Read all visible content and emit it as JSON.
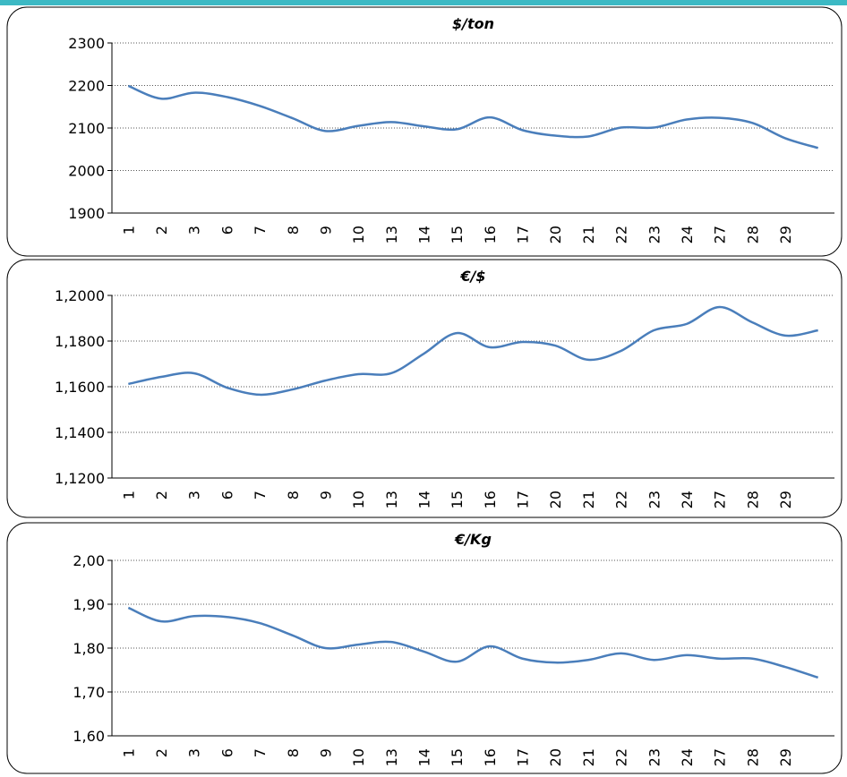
{
  "chart_data": [
    {
      "type": "line",
      "title": "$/ton",
      "categories": [
        "1",
        "2",
        "3",
        "6",
        "7",
        "8",
        "9",
        "10",
        "13",
        "14",
        "15",
        "16",
        "17",
        "20",
        "21",
        "22",
        "23",
        "24",
        "27",
        "28",
        "29",
        null
      ],
      "series": [
        {
          "color": "#4a7ebb",
          "values": [
            2199,
            2169,
            2183,
            2173,
            2152,
            2123,
            2093,
            2105,
            2114,
            2104,
            2097,
            2125,
            2095,
            2082,
            2080,
            2101,
            2101,
            2120,
            2124,
            2112,
            2076,
            2053
          ]
        }
      ],
      "ylim": [
        1900,
        2300
      ],
      "yticks": [
        1900,
        2000,
        2100,
        2200,
        2300
      ],
      "grid": true
    },
    {
      "type": "line",
      "title": "€/$",
      "categories": [
        "1",
        "2",
        "3",
        "6",
        "7",
        "8",
        "9",
        "10",
        "13",
        "14",
        "15",
        "16",
        "17",
        "20",
        "21",
        "22",
        "23",
        "24",
        "27",
        "28",
        "29",
        null
      ],
      "series": [
        {
          "color": "#4a7ebb",
          "values": [
            1.1612,
            1.1643,
            1.1659,
            1.1596,
            1.1565,
            1.1588,
            1.1627,
            1.1655,
            1.1659,
            1.1745,
            1.1835,
            1.1773,
            1.1796,
            1.178,
            1.1718,
            1.1757,
            1.1847,
            1.1875,
            1.1949,
            1.1882,
            1.1824,
            1.1847
          ]
        }
      ],
      "ylim": [
        1.12,
        1.2
      ],
      "yticks": [
        {
          "value": 1.12,
          "label": "1,1200"
        },
        {
          "value": 1.14,
          "label": "1,1400"
        },
        {
          "value": 1.16,
          "label": "1,1600"
        },
        {
          "value": 1.18,
          "label": "1,1800"
        },
        {
          "value": 1.2,
          "label": "1,2000"
        }
      ],
      "grid": true
    },
    {
      "type": "line",
      "title": "€/Kg",
      "categories": [
        "1",
        "2",
        "3",
        "6",
        "7",
        "8",
        "9",
        "10",
        "13",
        "14",
        "15",
        "16",
        "17",
        "20",
        "21",
        "22",
        "23",
        "24",
        "27",
        "28",
        "29",
        null
      ],
      "series": [
        {
          "color": "#4a7ebb",
          "values": [
            1.892,
            1.861,
            1.873,
            1.871,
            1.857,
            1.829,
            1.8,
            1.808,
            1.814,
            1.792,
            1.769,
            1.804,
            1.776,
            1.767,
            1.773,
            1.788,
            1.773,
            1.784,
            1.776,
            1.776,
            1.757,
            1.733
          ]
        }
      ],
      "ylim": [
        1.6,
        2.0
      ],
      "yticks": [
        {
          "value": 1.6,
          "label": "1,60"
        },
        {
          "value": 1.7,
          "label": "1,70"
        },
        {
          "value": 1.8,
          "label": "1,80"
        },
        {
          "value": 1.9,
          "label": "1,90"
        },
        {
          "value": 2.0,
          "label": "2,00"
        }
      ],
      "grid": true
    }
  ]
}
